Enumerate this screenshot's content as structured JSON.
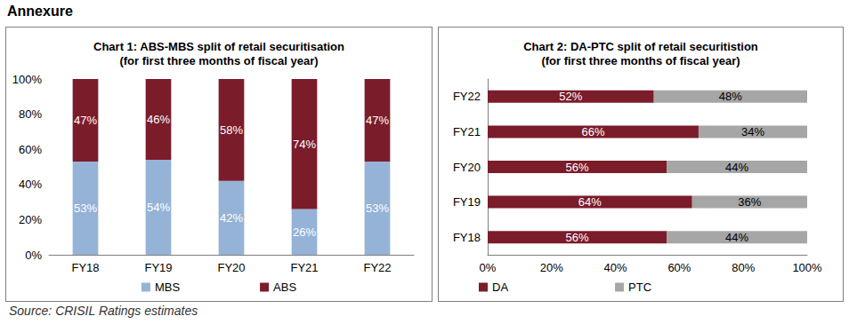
{
  "heading": "Annexure",
  "source": "Source: CRISIL Ratings estimates",
  "chart_data": [
    {
      "type": "bar",
      "title": "Chart 1: ABS-MBS split of retail securitisation\n(for first three months of fiscal year)",
      "categories": [
        "FY18",
        "FY19",
        "FY20",
        "FY21",
        "FY22"
      ],
      "series": [
        {
          "name": "MBS",
          "color": "#95b3d7",
          "values": [
            53,
            54,
            42,
            26,
            53
          ],
          "value_labels": [
            "53%",
            "54%",
            "42%",
            "26%",
            "53%"
          ]
        },
        {
          "name": "ABS",
          "color": "#7b1c2a",
          "values": [
            47,
            46,
            58,
            74,
            47
          ],
          "value_labels": [
            "47%",
            "46%",
            "58%",
            "74%",
            "47%"
          ]
        }
      ],
      "ylim": [
        0,
        100
      ],
      "yticks": [
        {
          "value": 0,
          "label": "0%"
        },
        {
          "value": 20,
          "label": "20%"
        },
        {
          "value": 40,
          "label": "40%"
        },
        {
          "value": 60,
          "label": "60%"
        },
        {
          "value": 80,
          "label": "80%"
        },
        {
          "value": 100,
          "label": "100%"
        }
      ],
      "stacked": true,
      "data_labels": true,
      "grid": false,
      "legend": "bottom"
    },
    {
      "type": "bar",
      "title": "Chart 2: DA-PTC split of retail securitistion\n(for first three months of fiscal year)",
      "orientation": "horizontal",
      "categories": [
        "FY18",
        "FY19",
        "FY20",
        "FY21",
        "FY22"
      ],
      "series": [
        {
          "name": "DA",
          "color": "#7b1c2a",
          "values": [
            56,
            64,
            56,
            66,
            52
          ],
          "value_labels": [
            "56%",
            "64%",
            "56%",
            "66%",
            "52%"
          ]
        },
        {
          "name": "PTC",
          "color": "#a6a6a6",
          "values": [
            44,
            36,
            44,
            34,
            48
          ],
          "value_labels": [
            "44%",
            "36%",
            "44%",
            "34%",
            "48%"
          ]
        }
      ],
      "xlim": [
        0,
        100
      ],
      "xticks": [
        {
          "value": 0,
          "label": "0%"
        },
        {
          "value": 20,
          "label": "20%"
        },
        {
          "value": 40,
          "label": "40%"
        },
        {
          "value": 60,
          "label": "60%"
        },
        {
          "value": 80,
          "label": "80%"
        },
        {
          "value": 100,
          "label": "100%"
        }
      ],
      "stacked": true,
      "data_labels": true,
      "grid": false,
      "legend": "bottom"
    }
  ]
}
